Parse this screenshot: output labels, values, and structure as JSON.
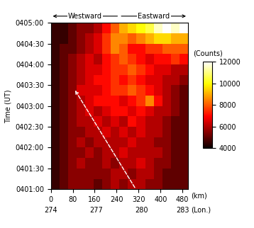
{
  "chart_data": {
    "type": "heatmap",
    "y_label": "Time (UT)",
    "x_label": "(km)",
    "x2_label": "(Lon.)",
    "direction_labels": [
      "Westward",
      "Eastward"
    ],
    "xlim": [
      0,
      500
    ],
    "xticks": [
      0,
      80,
      160,
      240,
      320,
      400,
      480
    ],
    "x2ticks": [
      {
        "value": 0,
        "label": "274"
      },
      {
        "value": 165,
        "label": "277"
      },
      {
        "value": 330,
        "label": "280"
      },
      {
        "value": 480,
        "label": "283"
      }
    ],
    "ylim": [
      60,
      300
    ],
    "yticks": [
      {
        "value": 60,
        "label": "0401:00"
      },
      {
        "value": 90,
        "label": "0401:30"
      },
      {
        "value": 120,
        "label": "0402:00"
      },
      {
        "value": 150,
        "label": "0402:30"
      },
      {
        "value": 180,
        "label": "0403:00"
      },
      {
        "value": 210,
        "label": "0403:30"
      },
      {
        "value": 240,
        "label": "0404:00"
      },
      {
        "value": 270,
        "label": "0404:30"
      },
      {
        "value": 300,
        "label": "0405:00"
      }
    ],
    "x_edges": [
      0,
      31.25,
      62.5,
      93.75,
      125,
      156.25,
      187.5,
      218.75,
      250,
      281.25,
      312.5,
      343.75,
      375,
      406.25,
      437.5,
      468.75,
      500
    ],
    "y_edges": [
      60,
      75,
      90,
      105,
      120,
      135,
      150,
      165,
      180,
      195,
      210,
      225,
      240,
      255,
      270,
      285,
      300
    ],
    "cells": [
      [
        4500,
        5000,
        5500,
        5500,
        5500,
        5000,
        5500,
        6000,
        5500,
        6000,
        6000,
        5500,
        5500,
        5000,
        5000,
        5000
      ],
      [
        4500,
        5000,
        5500,
        5500,
        5500,
        5500,
        5500,
        6000,
        6000,
        5500,
        6000,
        6000,
        5500,
        5000,
        5000,
        5000
      ],
      [
        4500,
        5000,
        5500,
        6000,
        5500,
        5500,
        6000,
        5500,
        6000,
        6000,
        6500,
        6000,
        5500,
        5500,
        5000,
        5000
      ],
      [
        4500,
        5000,
        5500,
        5500,
        6000,
        5500,
        6000,
        6000,
        6500,
        6000,
        6000,
        6000,
        6000,
        5500,
        5000,
        5000
      ],
      [
        4500,
        5000,
        5500,
        6000,
        5500,
        6000,
        6000,
        6000,
        6000,
        6500,
        6000,
        6000,
        5500,
        5500,
        5000,
        5000
      ],
      [
        4500,
        5000,
        5500,
        5500,
        6000,
        6000,
        6500,
        6000,
        6500,
        6000,
        6500,
        6000,
        6000,
        5500,
        5000,
        5000
      ],
      [
        4500,
        5000,
        5500,
        6000,
        6000,
        6500,
        6000,
        6500,
        6000,
        7000,
        6500,
        6000,
        6000,
        5500,
        5000,
        5000
      ],
      [
        4500,
        5000,
        5500,
        6000,
        6500,
        6000,
        6500,
        7000,
        7000,
        6500,
        7000,
        6500,
        6000,
        6000,
        5500,
        5000
      ],
      [
        4500,
        5000,
        5500,
        6000,
        6500,
        7000,
        7000,
        7000,
        6500,
        7000,
        7500,
        8500,
        7000,
        6000,
        5500,
        5000
      ],
      [
        4500,
        5000,
        5500,
        6500,
        6500,
        6500,
        7000,
        7500,
        7500,
        8000,
        7500,
        7000,
        6500,
        6000,
        5500,
        5000
      ],
      [
        4500,
        5000,
        5500,
        6000,
        6500,
        7000,
        7000,
        7500,
        7000,
        7500,
        7000,
        6500,
        6500,
        6000,
        6000,
        5500
      ],
      [
        4500,
        5000,
        5500,
        6000,
        6500,
        6500,
        7000,
        7500,
        7500,
        8000,
        7500,
        7000,
        6500,
        6500,
        6000,
        6000
      ],
      [
        4500,
        5000,
        5500,
        6000,
        6500,
        6000,
        7000,
        7500,
        8000,
        7500,
        7000,
        6500,
        7000,
        7000,
        7500,
        7000
      ],
      [
        4500,
        5000,
        5000,
        5500,
        6000,
        6500,
        7500,
        8500,
        8000,
        7000,
        7000,
        7500,
        7500,
        8000,
        8000,
        8000
      ],
      [
        4500,
        4500,
        5000,
        5500,
        6000,
        6500,
        7500,
        8500,
        8500,
        8000,
        8500,
        9000,
        9500,
        9500,
        9000,
        9000
      ],
      [
        4500,
        4500,
        5000,
        5500,
        5500,
        6000,
        7000,
        8000,
        9000,
        9500,
        10000,
        10500,
        11500,
        12000,
        11500,
        12000
      ]
    ],
    "colorbar_label": "(Counts)",
    "colorbar_range": [
      4000,
      12000
    ],
    "colorbar_ticks": [
      4000,
      6000,
      8000,
      10000,
      12000
    ],
    "arrow": {
      "start": [
        310,
        60
      ],
      "end": [
        85,
        205
      ]
    }
  }
}
